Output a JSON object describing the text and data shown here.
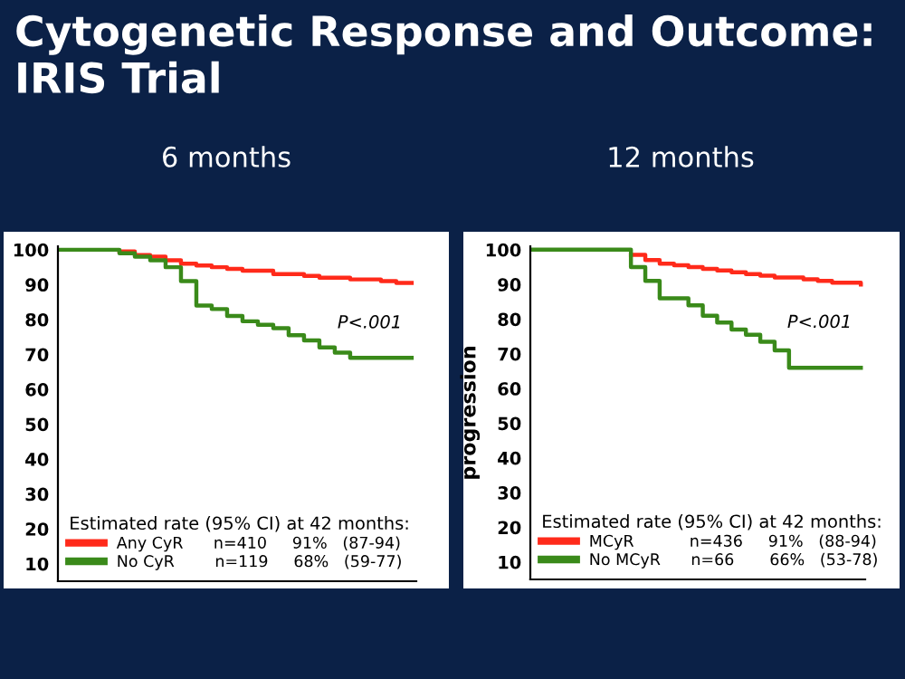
{
  "chart_data": [
    {
      "type": "step",
      "title": "6 months",
      "annotations": [
        "Cytogenetic Response and Outcome: IRIS Trial",
        "P<.001"
      ],
      "legend_title": "Estimated rate (95% CI) at 42 months:",
      "legend": "bottom left",
      "grid": false,
      "marker": "none",
      "line_style": "solid",
      "tick_labels": "y",
      "categories": [
        null,
        null,
        null,
        null,
        null,
        null,
        null,
        null,
        null,
        null,
        null,
        null,
        null,
        null,
        null,
        null,
        null,
        null,
        null,
        null,
        null,
        null,
        null,
        null
      ],
      "ylim": [
        5,
        101
      ],
      "yticks": [
        10,
        20,
        30,
        40,
        50,
        60,
        70,
        80,
        90,
        100
      ],
      "series": [
        {
          "name": "Any CyR      n=410     91%   (87-94)",
          "color": "#ff2a1a",
          "values": [
            null,
            null,
            null,
            null,
            99.5,
            98.5,
            98,
            97,
            96,
            95.5,
            95,
            94.5,
            94,
            94,
            93,
            93,
            92.5,
            92,
            92,
            91.5,
            91.5,
            91,
            90.5,
            90.5
          ]
        },
        {
          "name": "No CyR        n=119     68%   (59-77)",
          "color": "#3a8a1a",
          "values": [
            100,
            100,
            100,
            100,
            99,
            98,
            97,
            95,
            91,
            84,
            83,
            81,
            79.5,
            78.5,
            77.5,
            75.5,
            74,
            72,
            70.5,
            69,
            69,
            69,
            69,
            69
          ]
        }
      ]
    },
    {
      "type": "step",
      "title": "12 months",
      "ylabel": "progression",
      "annotations": [
        "P<.001"
      ],
      "legend_title": "Estimated rate (95% CI) at 42 months:",
      "legend": "bottom left",
      "grid": false,
      "marker": "none",
      "line_style": "solid",
      "tick_labels": "y",
      "categories": [
        null,
        null,
        null,
        null,
        null,
        null,
        null,
        null,
        null,
        null,
        null,
        null,
        null,
        null,
        null,
        null,
        null,
        null,
        null,
        null,
        null,
        null,
        null,
        null
      ],
      "ylim": [
        5,
        101
      ],
      "yticks": [
        10,
        20,
        30,
        40,
        50,
        60,
        70,
        80,
        90,
        100
      ],
      "series": [
        {
          "name": "MCyR           n=436     91%   (88-94)",
          "color": "#ff2a1a",
          "values": [
            null,
            null,
            null,
            null,
            null,
            null,
            null,
            98.5,
            97,
            96,
            95.5,
            95,
            94.5,
            94,
            93.5,
            93,
            92.5,
            92,
            92,
            91.5,
            91,
            90.5,
            90.5,
            90
          ]
        },
        {
          "name": "No MCyR      n=66       66%   (53-78)",
          "color": "#3a8a1a",
          "values": [
            100,
            100,
            100,
            100,
            100,
            100,
            100,
            95,
            91,
            86,
            86,
            84,
            81,
            79,
            77,
            75.5,
            73.5,
            71,
            66,
            66,
            66,
            66,
            66,
            66
          ]
        }
      ]
    }
  ]
}
